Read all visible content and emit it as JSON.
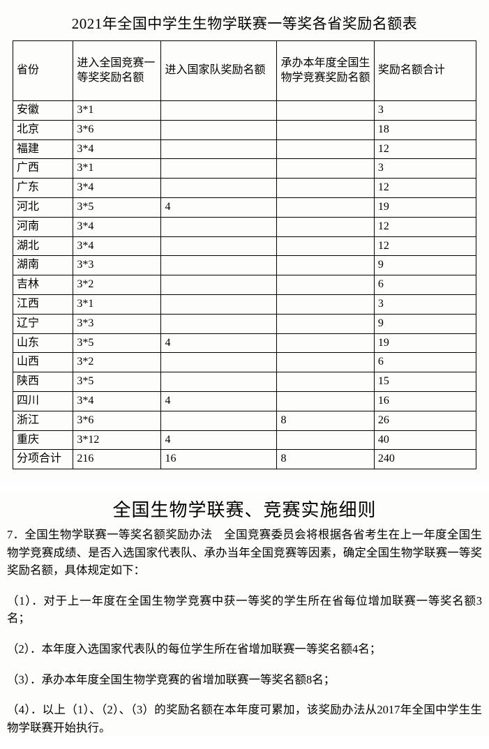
{
  "table": {
    "title": "2021年全国中学生生物学联赛一等奖各省奖励名额表",
    "columns": [
      "省份",
      "进入全国竞赛一等奖奖励名额",
      "进入国家队奖励名额",
      "承办本年度全国生物学竞赛奖励名额",
      "奖励名额合计"
    ],
    "rows": [
      [
        "安徽",
        "3*1",
        "",
        "",
        "3"
      ],
      [
        "北京",
        "3*6",
        "",
        "",
        "18"
      ],
      [
        "福建",
        "3*4",
        "",
        "",
        "12"
      ],
      [
        "广西",
        "3*1",
        "",
        "",
        "3"
      ],
      [
        "广东",
        "3*4",
        "",
        "",
        "12"
      ],
      [
        "河北",
        "3*5",
        "4",
        "",
        "19"
      ],
      [
        "河南",
        "3*4",
        "",
        "",
        "12"
      ],
      [
        "湖北",
        "3*4",
        "",
        "",
        "12"
      ],
      [
        "湖南",
        "3*3",
        "",
        "",
        "9"
      ],
      [
        "吉林",
        "3*2",
        "",
        "",
        "6"
      ],
      [
        "江西",
        "3*1",
        "",
        "",
        "3"
      ],
      [
        "辽宁",
        "3*3",
        "",
        "",
        "9"
      ],
      [
        "山东",
        "3*5",
        "4",
        "",
        "19"
      ],
      [
        "山西",
        "3*2",
        "",
        "",
        "6"
      ],
      [
        "陕西",
        "3*5",
        "",
        "",
        "15"
      ],
      [
        "四川",
        "3*4",
        "4",
        "",
        "16"
      ],
      [
        "浙江",
        "3*6",
        "",
        "8",
        "26"
      ],
      [
        "重庆",
        "3*12",
        "4",
        "",
        "40"
      ],
      [
        "分项合计",
        "216",
        "16",
        "8",
        "240"
      ]
    ]
  },
  "rules": {
    "title": "全国生物学联赛、竞赛实施细则",
    "intro": "7．全国生物学联赛一等奖名额奖励办法　全国竞赛委员会将根据各省考生在上一年度全国生物学竞赛成绩、是否入选国家代表队、承办当年全国竞赛等因素，确定全国生物学联赛一等奖奖励名额，具体规定如下：",
    "items": [
      "（1）．对于上一年度在全国生物学竞赛中获一等奖的学生所在省每位增加联赛一等奖名额3名；",
      "（2）．本年度入选国家代表队的每位学生所在省增加联赛一等奖名额4名；",
      "（3）．承办本年度全国生物学竞赛的省增加联赛一等奖名额8名；",
      "（4）．以上（1）、（2）、（3）的奖励名额在本年度可累加，该奖励办法从2017年全国中学生生物学联赛开始执行。"
    ]
  }
}
